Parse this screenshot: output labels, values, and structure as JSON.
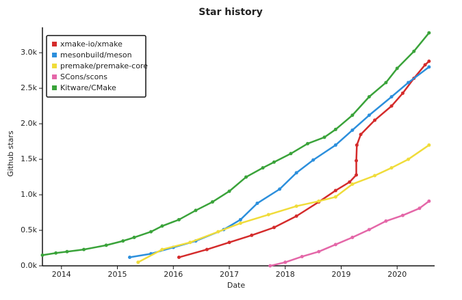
{
  "chart_data": {
    "type": "line",
    "title": "Star history",
    "x_label": "Date",
    "y_label": "Github stars",
    "xlim": [
      2013.66,
      2020.67
    ],
    "xticks": [
      2014,
      2015,
      2016,
      2017,
      2018,
      2019,
      2020
    ],
    "ylim": [
      0,
      3300
    ],
    "yticks": [
      {
        "value": 0,
        "label": "0.0k"
      },
      {
        "value": 500,
        "label": "0.5k"
      },
      {
        "value": 1000,
        "label": "1.0k"
      },
      {
        "value": 1500,
        "label": "1.5k"
      },
      {
        "value": 2000,
        "label": "2.0k"
      },
      {
        "value": 2500,
        "label": "2.5k"
      },
      {
        "value": 3000,
        "label": "3.0k"
      }
    ],
    "legend": "upper left",
    "series": [
      {
        "name": "xmake-io/xmake",
        "color": "#d42b2b",
        "x": [
          2016.1,
          2016.6,
          2017.0,
          2017.4,
          2017.8,
          2018.2,
          2018.6,
          2018.9,
          2019.15,
          2019.27,
          2019.27,
          2019.28,
          2019.35,
          2019.6,
          2019.9,
          2020.1,
          2020.3,
          2020.5,
          2020.57
        ],
        "values": [
          120,
          230,
          330,
          430,
          540,
          700,
          900,
          1060,
          1180,
          1280,
          1480,
          1700,
          1850,
          2050,
          2250,
          2430,
          2640,
          2830,
          2880
        ]
      },
      {
        "name": "mesonbuild/meson",
        "color": "#2c8fdc",
        "x": [
          2015.22,
          2015.6,
          2016.0,
          2016.4,
          2016.9,
          2017.2,
          2017.5,
          2017.9,
          2018.2,
          2018.5,
          2018.9,
          2019.2,
          2019.5,
          2019.9,
          2020.2,
          2020.57
        ],
        "values": [
          120,
          170,
          260,
          350,
          510,
          650,
          880,
          1080,
          1310,
          1490,
          1700,
          1910,
          2120,
          2380,
          2580,
          2800
        ]
      },
      {
        "name": "premake/premake-core",
        "color": "#f0dc3a",
        "x": [
          2015.37,
          2015.8,
          2016.3,
          2016.8,
          2017.2,
          2017.7,
          2018.2,
          2018.6,
          2018.9,
          2019.2,
          2019.6,
          2019.9,
          2020.2,
          2020.57
        ],
        "values": [
          50,
          230,
          330,
          480,
          600,
          720,
          840,
          910,
          970,
          1150,
          1270,
          1380,
          1500,
          1700
        ]
      },
      {
        "name": "SCons/scons",
        "color": "#e467a8",
        "x": [
          2017.73,
          2018.0,
          2018.3,
          2018.6,
          2018.9,
          2019.2,
          2019.5,
          2019.8,
          2020.1,
          2020.4,
          2020.57
        ],
        "values": [
          0,
          50,
          130,
          200,
          300,
          400,
          510,
          630,
          710,
          810,
          910
        ]
      },
      {
        "name": "Kitware/CMake",
        "color": "#3aa33a",
        "x": [
          2013.66,
          2013.9,
          2014.1,
          2014.4,
          2014.8,
          2015.1,
          2015.3,
          2015.6,
          2015.8,
          2016.1,
          2016.4,
          2016.7,
          2017.0,
          2017.3,
          2017.6,
          2017.8,
          2018.1,
          2018.4,
          2018.7,
          2018.9,
          2019.2,
          2019.5,
          2019.8,
          2020.0,
          2020.3,
          2020.57
        ],
        "values": [
          150,
          180,
          200,
          230,
          290,
          350,
          400,
          480,
          560,
          650,
          780,
          900,
          1050,
          1250,
          1380,
          1460,
          1580,
          1720,
          1810,
          1920,
          2120,
          2380,
          2580,
          2780,
          3020,
          3280
        ]
      }
    ]
  }
}
